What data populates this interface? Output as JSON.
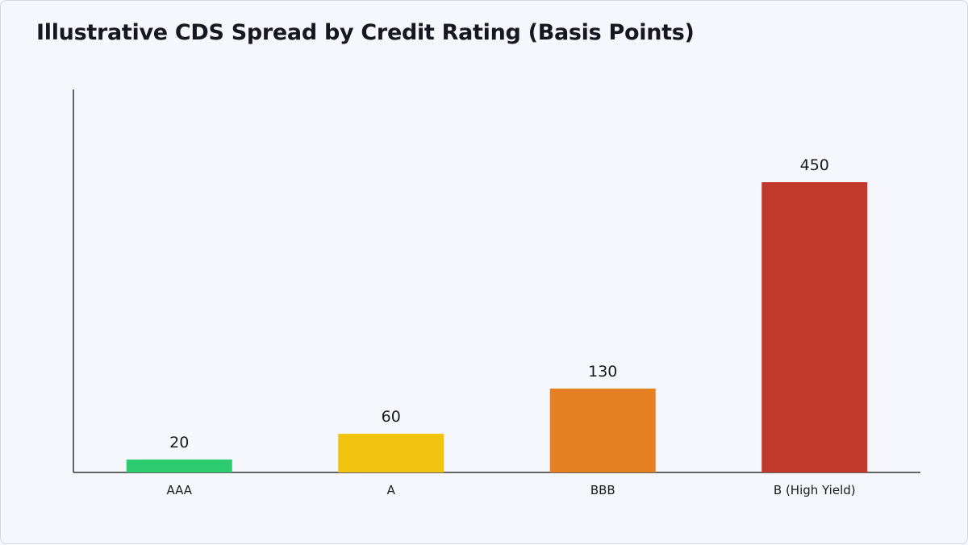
{
  "chart_data": {
    "type": "bar",
    "title": "Illustrative CDS Spread by Credit Rating (Basis Points)",
    "categories": [
      "AAA",
      "A",
      "BBB",
      "B (High Yield)"
    ],
    "values": [
      20,
      60,
      130,
      450
    ],
    "data_labels": [
      "20",
      "60",
      "130",
      "450"
    ],
    "colors": [
      "#2ecc71",
      "#f1c40f",
      "#e67e22",
      "#c0392b"
    ],
    "ylim": [
      0,
      500
    ],
    "xlabel": "",
    "ylabel": "",
    "grid": false,
    "legend": "none"
  }
}
